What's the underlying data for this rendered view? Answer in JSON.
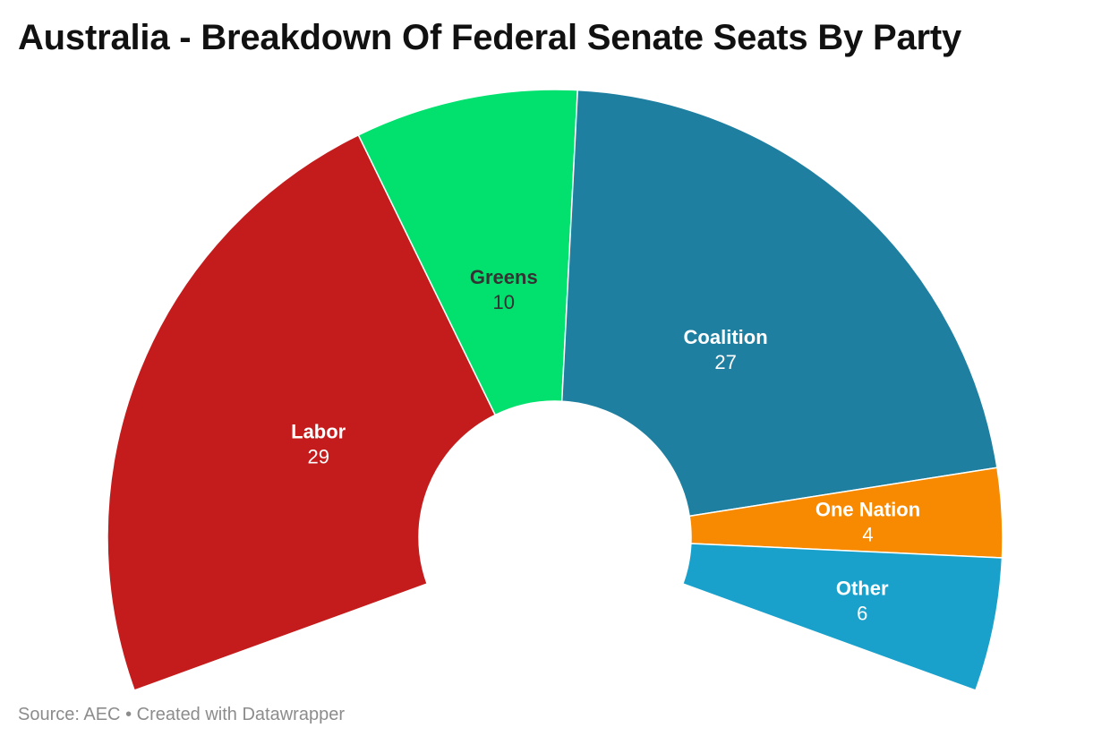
{
  "header": {
    "title": "Australia - Breakdown Of Federal Senate Seats By Party"
  },
  "footer": {
    "source_label": "Source: AEC",
    "separator": "•",
    "credit": "Created with Datawrapper"
  },
  "chart_data": {
    "type": "pie",
    "subtype": "semi-donut",
    "title": "Australia - Breakdown Of Federal Senate Seats By Party",
    "categories": [
      "Labor",
      "Greens",
      "Coalition",
      "One Nation",
      "Other"
    ],
    "values": [
      29,
      10,
      27,
      4,
      6
    ],
    "colors": [
      "#c41c1c",
      "#02e06e",
      "#1e7fa0",
      "#f78a00",
      "#19a1cc"
    ],
    "label_colors": [
      "#ffffff",
      "#333333",
      "#ffffff",
      "#ffffff",
      "#ffffff"
    ]
  }
}
